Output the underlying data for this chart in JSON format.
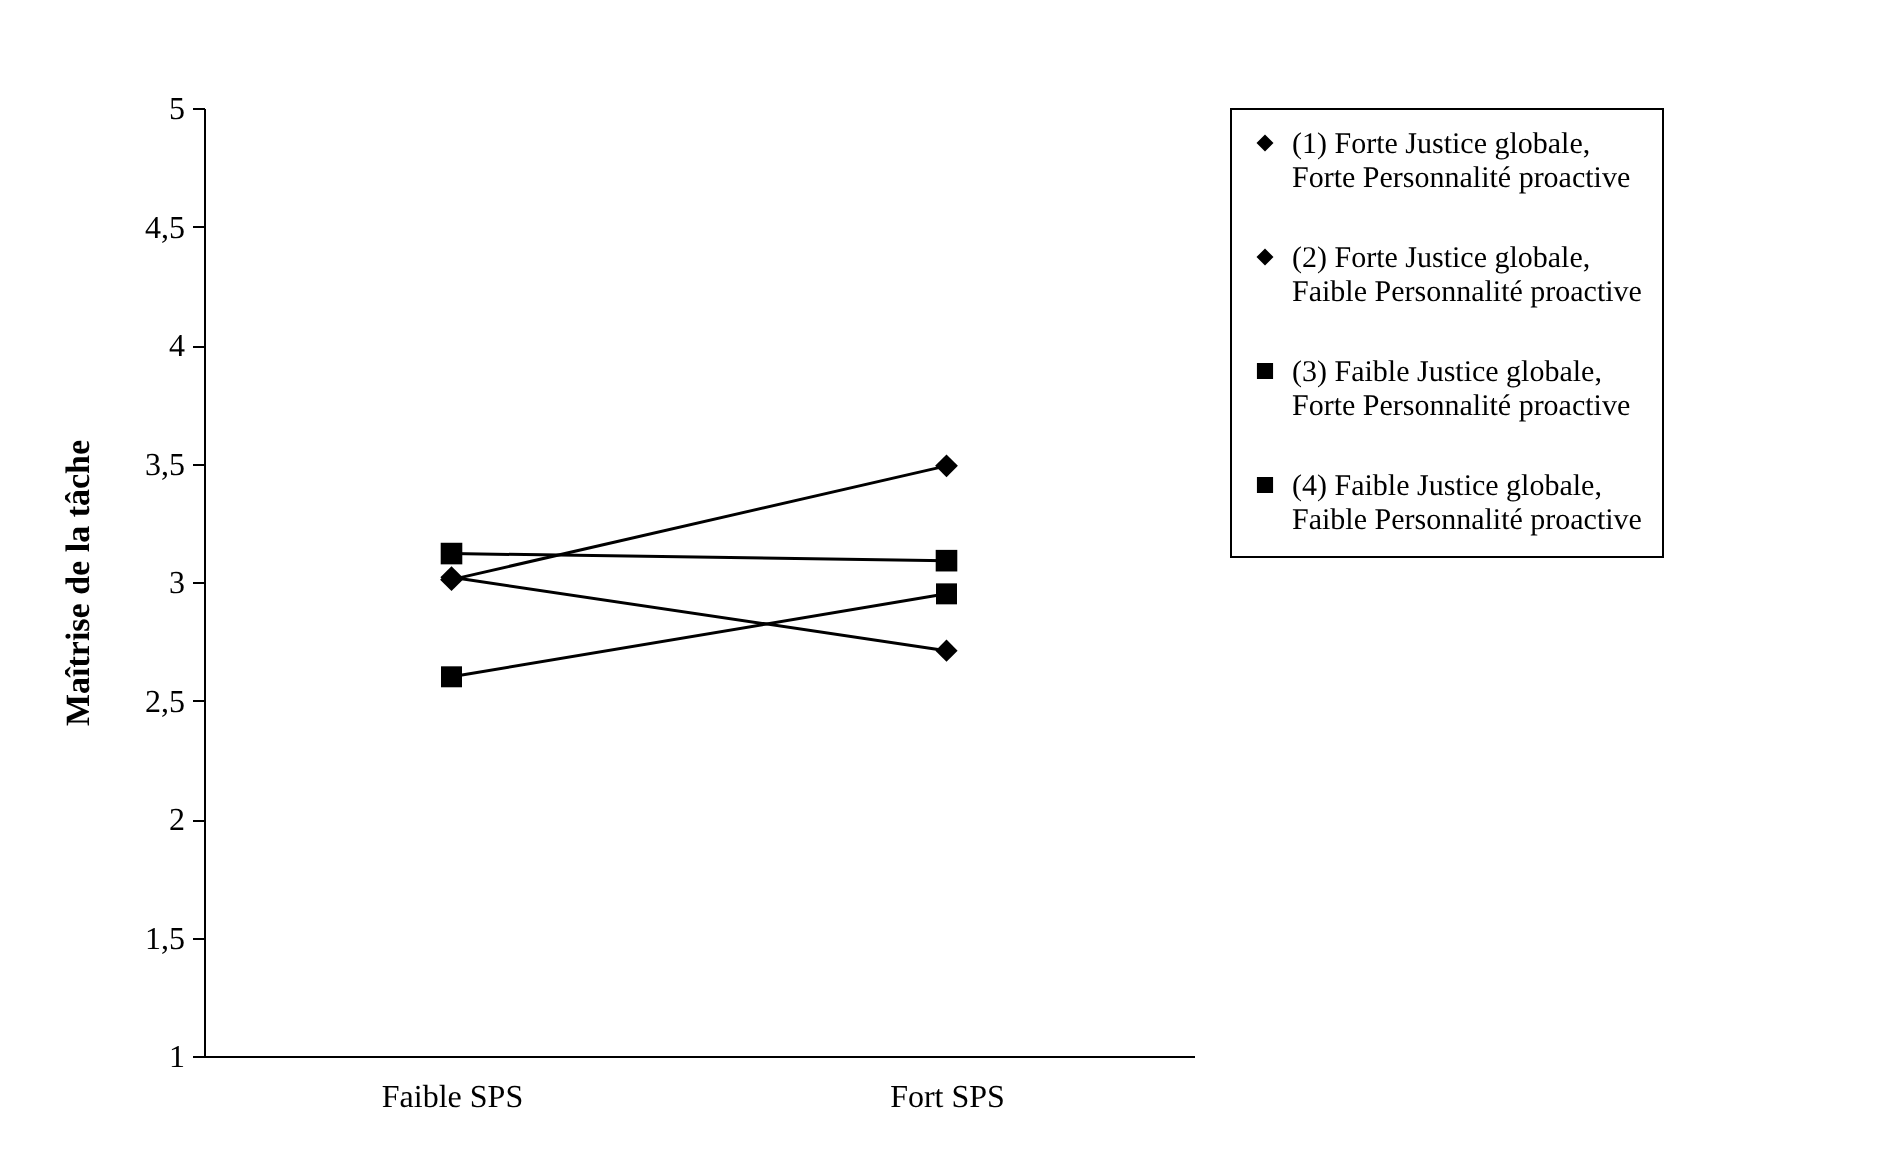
{
  "chart_data": {
    "type": "line",
    "ylabel": "Maîtrise de la tâche",
    "categories": [
      "Faible SPS",
      "Fort SPS"
    ],
    "series": [
      {
        "name": "(1) Forte Justice globale, Forte Personnalité proactive",
        "color": "#000000",
        "marker": "diamond",
        "values": [
          3.01,
          3.49
        ]
      },
      {
        "name": "(2) Forte Justice globale, Faible Personnalité proactive",
        "color": "#000000",
        "marker": "diamond",
        "values": [
          3.02,
          2.71
        ]
      },
      {
        "name": "(3) Faible Justice globale, Forte Personnalité proactive",
        "color": "#000000",
        "marker": "square",
        "values": [
          3.12,
          3.09
        ]
      },
      {
        "name": "(4) Faible Justice globale, Faible Personnalité proactive",
        "color": "#000000",
        "marker": "square",
        "values": [
          2.6,
          2.95
        ]
      }
    ],
    "ylim": [
      1,
      5
    ],
    "yticks": [
      1,
      {
        "value": 1.5,
        "label": "1,5"
      },
      2,
      {
        "value": 2.5,
        "label": "2,5"
      },
      3,
      {
        "value": 3.5,
        "label": "3,5"
      },
      4,
      {
        "value": 4.5,
        "label": "4,5"
      },
      5
    ],
    "legend": "right",
    "grid": false
  }
}
